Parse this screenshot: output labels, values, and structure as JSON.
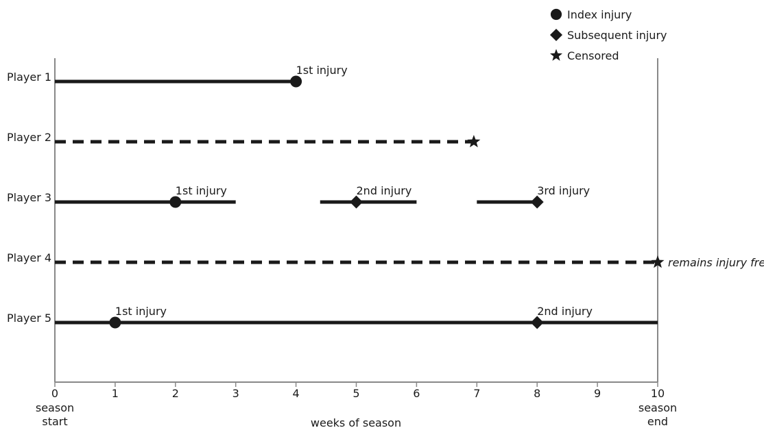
{
  "chart_data": {
    "type": "timeline",
    "xlabel": "weeks of season",
    "xlim": [
      0,
      10
    ],
    "x_ticks": [
      0,
      1,
      2,
      3,
      4,
      5,
      6,
      7,
      8,
      9,
      10
    ],
    "x_tick_sublabels": [
      {
        "x": 0,
        "lines": [
          "season",
          "start"
        ]
      },
      {
        "x": 10,
        "lines": [
          "season",
          "end"
        ]
      }
    ],
    "legend_position": "top-right",
    "legend": [
      {
        "marker": "circle",
        "label": "Index injury"
      },
      {
        "marker": "diamond",
        "label": "Subsequent injury"
      },
      {
        "marker": "star",
        "label": "Censored"
      }
    ],
    "rows": [
      {
        "label": "Player 1",
        "segments": [
          {
            "from": 0,
            "to": 4,
            "style": "solid"
          }
        ],
        "events": [
          {
            "x": 4,
            "marker": "circle",
            "label": "1st injury"
          }
        ]
      },
      {
        "label": "Player 2",
        "segments": [
          {
            "from": 0,
            "to": 6.95,
            "style": "dashed"
          }
        ],
        "events": [
          {
            "x": 6.95,
            "marker": "star",
            "label": ""
          }
        ]
      },
      {
        "label": "Player 3",
        "segments": [
          {
            "from": 0,
            "to": 3,
            "style": "solid"
          },
          {
            "from": 4.4,
            "to": 6,
            "style": "solid"
          },
          {
            "from": 7,
            "to": 8,
            "style": "solid"
          }
        ],
        "events": [
          {
            "x": 2,
            "marker": "circle",
            "label": "1st injury"
          },
          {
            "x": 5,
            "marker": "diamond",
            "label": "2nd injury"
          },
          {
            "x": 8,
            "marker": "diamond",
            "label": "3rd injury"
          }
        ]
      },
      {
        "label": "Player 4",
        "segments": [
          {
            "from": 0,
            "to": 10,
            "style": "dashed"
          }
        ],
        "events": [
          {
            "x": 10,
            "marker": "star",
            "label": "remains injury free",
            "italic": true,
            "label_side": "right"
          }
        ]
      },
      {
        "label": "Player 5",
        "segments": [
          {
            "from": 0,
            "to": 10,
            "style": "solid"
          }
        ],
        "events": [
          {
            "x": 1,
            "marker": "circle",
            "label": "1st injury"
          },
          {
            "x": 8,
            "marker": "diamond",
            "label": "2nd injury"
          }
        ]
      }
    ]
  }
}
